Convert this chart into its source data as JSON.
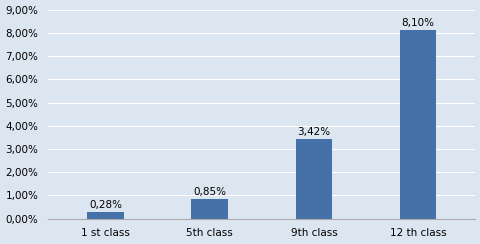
{
  "categories": [
    "1 st class",
    "5th class",
    "9th class",
    "12 th class"
  ],
  "values": [
    0.0028,
    0.0085,
    0.0342,
    0.081
  ],
  "labels": [
    "0,28%",
    "0,85%",
    "3,42%",
    "8,10%"
  ],
  "bar_color": "#4472a8",
  "ylim": [
    0,
    0.09
  ],
  "yticks": [
    0.0,
    0.01,
    0.02,
    0.03,
    0.04,
    0.05,
    0.06,
    0.07,
    0.08,
    0.09
  ],
  "ytick_labels": [
    "0,00%",
    "1,00%",
    "2,00%",
    "3,00%",
    "4,00%",
    "5,00%",
    "6,00%",
    "7,00%",
    "8,00%",
    "9,00%"
  ],
  "background_color": "#dce6f1",
  "plot_bg_color": "#dce6f1",
  "grid_color": "#ffffff",
  "label_fontsize": 7.5,
  "tick_fontsize": 7.5,
  "bar_width": 0.35,
  "figsize": [
    4.81,
    2.44
  ],
  "dpi": 100
}
